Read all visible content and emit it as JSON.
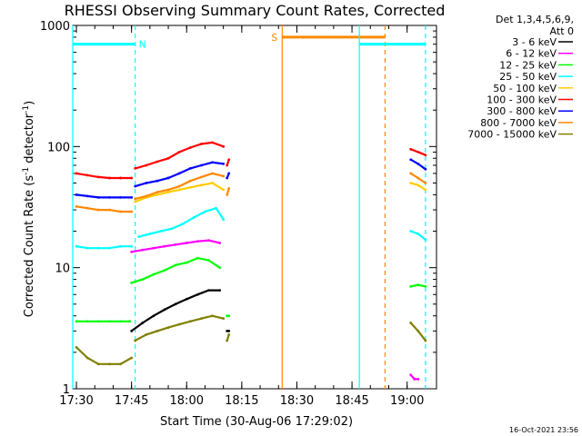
{
  "chart_data": {
    "type": "line",
    "title": "RHESSI Observing Summary Count Rates, Corrected",
    "xlabel": "Start Time (30-Aug-06 17:29:02)",
    "ylabel_main": "Corrected Count Rate (s",
    "ylabel_sup": "-1",
    "ylabel_rest": " detector",
    "ylabel_sup2": "-1",
    "ylabel_end": ")",
    "y_scale": "log",
    "ylim": [
      1,
      1000
    ],
    "xlim": [
      "17:29",
      "19:08"
    ],
    "x_ticks": [
      "17:30",
      "17:45",
      "18:00",
      "18:15",
      "18:30",
      "18:45",
      "19:00"
    ],
    "y_ticks": [
      "1",
      "10",
      "100",
      "1000"
    ],
    "legend_header": [
      "Det 1,3,4,5,6,9,",
      "Att 0"
    ],
    "legend_position": "right",
    "timestamp": "16-Oct-2021 23:56",
    "series": [
      {
        "name": "3 - 6 keV",
        "color": "#000000",
        "segments": [
          {
            "x": [
              "17:45",
              "17:48",
              "17:51",
              "17:54",
              "17:57",
              "18:00",
              "18:03",
              "18:06",
              "18:09"
            ],
            "y": [
              3.0,
              3.5,
              4.0,
              4.5,
              5.0,
              5.5,
              6.0,
              6.5,
              6.5
            ]
          },
          {
            "x": [
              "18:11",
              "18:11.5"
            ],
            "y": [
              3.0,
              3.0
            ]
          }
        ]
      },
      {
        "name": "6 - 12 keV",
        "color": "#ff00ff",
        "segments": [
          {
            "x": [
              "17:45",
              "17:48",
              "17:51",
              "17:54",
              "17:57",
              "18:00",
              "18:03",
              "18:06",
              "18:09"
            ],
            "y": [
              13.5,
              14.0,
              14.5,
              15.0,
              15.5,
              16.0,
              16.5,
              16.8,
              16.0
            ]
          },
          {
            "x": [
              "19:01",
              "19:02",
              "19:03"
            ],
            "y": [
              1.3,
              1.2,
              1.2
            ]
          }
        ]
      },
      {
        "name": "12 - 25 keV",
        "color": "#00ff00",
        "segments": [
          {
            "x": [
              "17:30",
              "17:33",
              "17:36",
              "17:39",
              "17:42",
              "17:44.5"
            ],
            "y": [
              3.6,
              3.6,
              3.6,
              3.6,
              3.6,
              3.6
            ]
          },
          {
            "x": [
              "17:45",
              "17:48",
              "17:51",
              "17:54",
              "17:57",
              "18:00",
              "18:03",
              "18:06",
              "18:09"
            ],
            "y": [
              7.5,
              8.0,
              8.8,
              9.5,
              10.5,
              11.0,
              12.0,
              11.5,
              10.0
            ]
          },
          {
            "x": [
              "18:11",
              "18:11.5"
            ],
            "y": [
              4.0,
              4.0
            ]
          },
          {
            "x": [
              "19:01",
              "19:03",
              "19:05"
            ],
            "y": [
              7.0,
              7.2,
              7.0
            ]
          }
        ]
      },
      {
        "name": "25 - 50 keV",
        "color": "#00ffff",
        "segments": [
          {
            "x": [
              "17:30",
              "17:33",
              "17:36",
              "17:39",
              "17:42",
              "17:45"
            ],
            "y": [
              15,
              14.5,
              14.5,
              14.5,
              15,
              15
            ]
          },
          {
            "x": [
              "17:47",
              "17:50",
              "17:53",
              "17:56",
              "17:59",
              "18:02",
              "18:05",
              "18:08",
              "18:10"
            ],
            "y": [
              18,
              19,
              20,
              21,
              23,
              26,
              29,
              31,
              25
            ]
          },
          {
            "x": [
              "19:01",
              "19:03",
              "19:05"
            ],
            "y": [
              20,
              19,
              17
            ]
          }
        ]
      },
      {
        "name": "50 - 100 keV",
        "color": "#ffcc00",
        "segments": [
          {
            "x": [
              "17:46",
              "17:49",
              "17:52",
              "17:55",
              "17:58",
              "18:01",
              "18:04",
              "18:07",
              "18:10"
            ],
            "y": [
              35,
              38,
              40,
              42,
              44,
              46,
              48,
              50,
              44
            ]
          },
          {
            "x": [
              "19:01",
              "19:03",
              "19:05"
            ],
            "y": [
              50,
              48,
              44
            ]
          }
        ]
      },
      {
        "name": "100 - 300 keV",
        "color": "#ff0000",
        "segments": [
          {
            "x": [
              "17:30",
              "17:33",
              "17:36",
              "17:39",
              "17:42",
              "17:45"
            ],
            "y": [
              60,
              58,
              56,
              55,
              55,
              55
            ]
          },
          {
            "x": [
              "17:46",
              "17:49",
              "17:52",
              "17:55",
              "17:58",
              "18:01",
              "18:04",
              "18:07",
              "18:10"
            ],
            "y": [
              66,
              70,
              75,
              80,
              90,
              98,
              105,
              108,
              100
            ]
          },
          {
            "x": [
              "18:11",
              "18:11.5"
            ],
            "y": [
              70,
              78
            ]
          },
          {
            "x": [
              "19:01",
              "19:03",
              "19:05"
            ],
            "y": [
              95,
              90,
              85
            ]
          }
        ]
      },
      {
        "name": "300 - 800 keV",
        "color": "#0000ff",
        "segments": [
          {
            "x": [
              "17:30",
              "17:33",
              "17:36",
              "17:39",
              "17:42",
              "17:45"
            ],
            "y": [
              40,
              39,
              38,
              38,
              38,
              38
            ]
          },
          {
            "x": [
              "17:46",
              "17:49",
              "17:52",
              "17:55",
              "17:58",
              "18:01",
              "18:04",
              "18:07",
              "18:10"
            ],
            "y": [
              47,
              50,
              52,
              55,
              60,
              66,
              70,
              74,
              72
            ]
          },
          {
            "x": [
              "18:11",
              "18:11.5"
            ],
            "y": [
              55,
              60
            ]
          },
          {
            "x": [
              "19:01",
              "19:03",
              "19:05"
            ],
            "y": [
              78,
              72,
              65
            ]
          }
        ]
      },
      {
        "name": "800 - 7000 keV",
        "color": "#ff8800",
        "segments": [
          {
            "x": [
              "17:30",
              "17:33",
              "17:36",
              "17:39",
              "17:42",
              "17:45"
            ],
            "y": [
              32,
              31,
              30,
              30,
              29,
              29
            ]
          },
          {
            "x": [
              "17:46",
              "17:49",
              "17:52",
              "17:55",
              "17:58",
              "18:01",
              "18:04",
              "18:07",
              "18:10"
            ],
            "y": [
              37,
              39,
              42,
              44,
              47,
              52,
              56,
              60,
              57
            ]
          },
          {
            "x": [
              "18:11",
              "18:11.5"
            ],
            "y": [
              40,
              45
            ]
          },
          {
            "x": [
              "19:01",
              "19:03",
              "19:05"
            ],
            "y": [
              60,
              55,
              50
            ]
          }
        ]
      },
      {
        "name": "7000 - 15000 keV",
        "color": "#808000",
        "segments": [
          {
            "x": [
              "17:30",
              "17:33",
              "17:36",
              "17:39",
              "17:42",
              "17:45"
            ],
            "y": [
              2.2,
              1.8,
              1.6,
              1.6,
              1.6,
              1.8
            ]
          },
          {
            "x": [
              "17:46",
              "17:49",
              "17:52",
              "17:55",
              "17:58",
              "18:01",
              "18:04",
              "18:07",
              "18:10"
            ],
            "y": [
              2.5,
              2.8,
              3.0,
              3.2,
              3.4,
              3.6,
              3.8,
              4.0,
              3.8
            ]
          },
          {
            "x": [
              "18:11",
              "18:11.5"
            ],
            "y": [
              2.5,
              2.8
            ]
          },
          {
            "x": [
              "19:01",
              "19:03",
              "19:05"
            ],
            "y": [
              3.5,
              3.0,
              2.5
            ]
          }
        ]
      }
    ],
    "annotation_bars": [
      {
        "label": "N",
        "color": "#00ffff",
        "y": 700,
        "x_start": "17:29",
        "x_end": "17:46",
        "solid_x": [
          "17:29"
        ],
        "dashed_x": [
          "17:46"
        ]
      },
      {
        "label": "S",
        "color": "#ff8800",
        "y": 800,
        "x_start": "18:26",
        "x_end": "18:54",
        "solid_x": [
          "18:26"
        ],
        "dashed_x": [
          "18:54"
        ]
      },
      {
        "label": "",
        "color": "#00ffff",
        "y": 700,
        "x_start": "18:47",
        "x_end": "19:05",
        "solid_x": [
          "18:47"
        ],
        "dashed_x": [
          "19:05"
        ]
      }
    ]
  }
}
